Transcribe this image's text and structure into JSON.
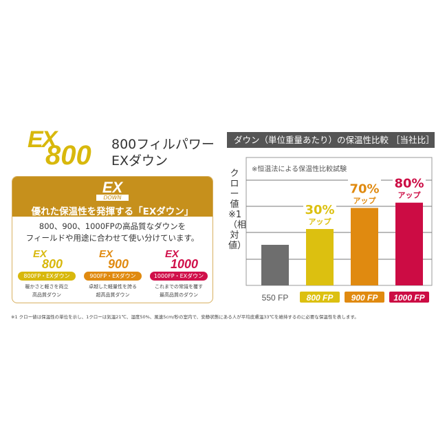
{
  "product": {
    "logo_ex": "EX",
    "logo_num": "800",
    "title_line1": "800フィルパワー",
    "title_line2": "EXダウン"
  },
  "info_box": {
    "logo_ex": "EX",
    "logo_sub": "DOWN",
    "heading": "優れた保温性を発揮する「EXダウン」",
    "desc_line1": "800、900、1000FPの高品質なダウンを",
    "desc_line2": "フィールドや用途に合わせて使い分けています。",
    "grades": [
      {
        "ex": "EX",
        "num": "800",
        "pill": "800FP・EXダウン",
        "cap1": "暖かさと軽さを両立",
        "cap2": "高品質ダウン",
        "color": "#d8b80c"
      },
      {
        "ex": "EX",
        "num": "900",
        "pill": "900FP・EXダウン",
        "cap1": "卓越した軽量性を誇る",
        "cap2": "超高品質ダウン",
        "color": "#e08a10"
      },
      {
        "ex": "EX",
        "num": "1000",
        "pill": "1000FP・EXダウン",
        "cap1": "これまでの常識を覆す",
        "cap2": "最高品質のダウン",
        "color": "#d0104a"
      }
    ]
  },
  "chart_data": {
    "type": "bar",
    "title": "ダウン（単位重量あたり）の保温性比較 ［当社比］",
    "note": "※恒温法による保温性比較試験",
    "ylabel": "クロー値※1（相対値）",
    "categories": [
      "550 FP",
      "800 FP",
      "900 FP",
      "1000 FP"
    ],
    "values": [
      100,
      130,
      170,
      180
    ],
    "data_labels": [
      null,
      {
        "pct": "30%",
        "sub": "アップ"
      },
      {
        "pct": "70%",
        "sub": "アップ"
      },
      {
        "pct": "80%",
        "sub": "アップ"
      }
    ],
    "colors": [
      "#6e6e6e",
      "#dcc010",
      "#e08a10",
      "#cc0c44"
    ],
    "grid": true
  },
  "footnote": "※1 クロー値は保温性の単位を示し、1クローは気温21℃、湿度50%、風速5cm/秒の室内で、安静状態にある人が平均皮膚温33℃を維持するのに必要な保温性を表します。"
}
